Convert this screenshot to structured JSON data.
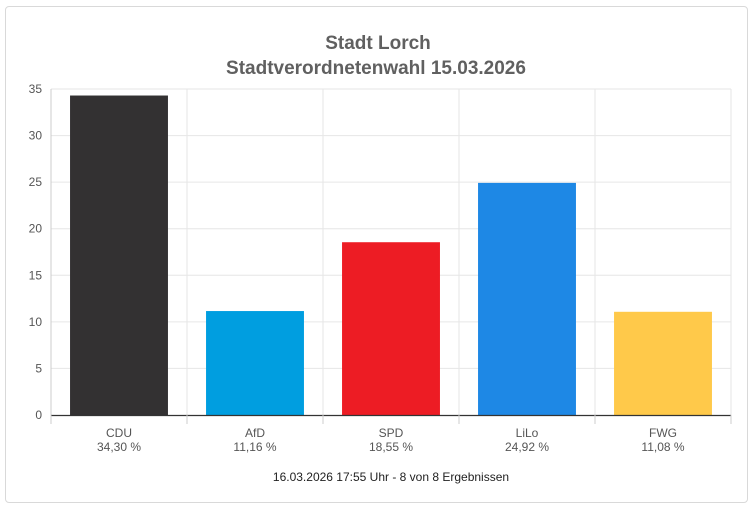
{
  "chart_data": {
    "type": "bar",
    "title": "Stadt Lorch",
    "subtitle": "Stadtverordnetenwahl 15.03.2026",
    "categories": [
      "CDU",
      "AfD",
      "SPD",
      "LiLo",
      "FWG"
    ],
    "values": [
      34.3,
      11.16,
      18.55,
      24.92,
      11.08
    ],
    "value_labels": [
      "34,30 %",
      "11,16 %",
      "18,55 %",
      "24,92 %",
      "11,08 %"
    ],
    "colors": [
      "#333132",
      "#009ee0",
      "#ed1c24",
      "#1e88e5",
      "#ffc94a"
    ],
    "ylim": [
      0,
      35
    ],
    "yticks": [
      0,
      5,
      10,
      15,
      20,
      25,
      30,
      35
    ],
    "grid": true,
    "xlabel": "",
    "ylabel": ""
  },
  "footer": "16.03.2026 17:55 Uhr - 8 von 8 Ergebnissen"
}
